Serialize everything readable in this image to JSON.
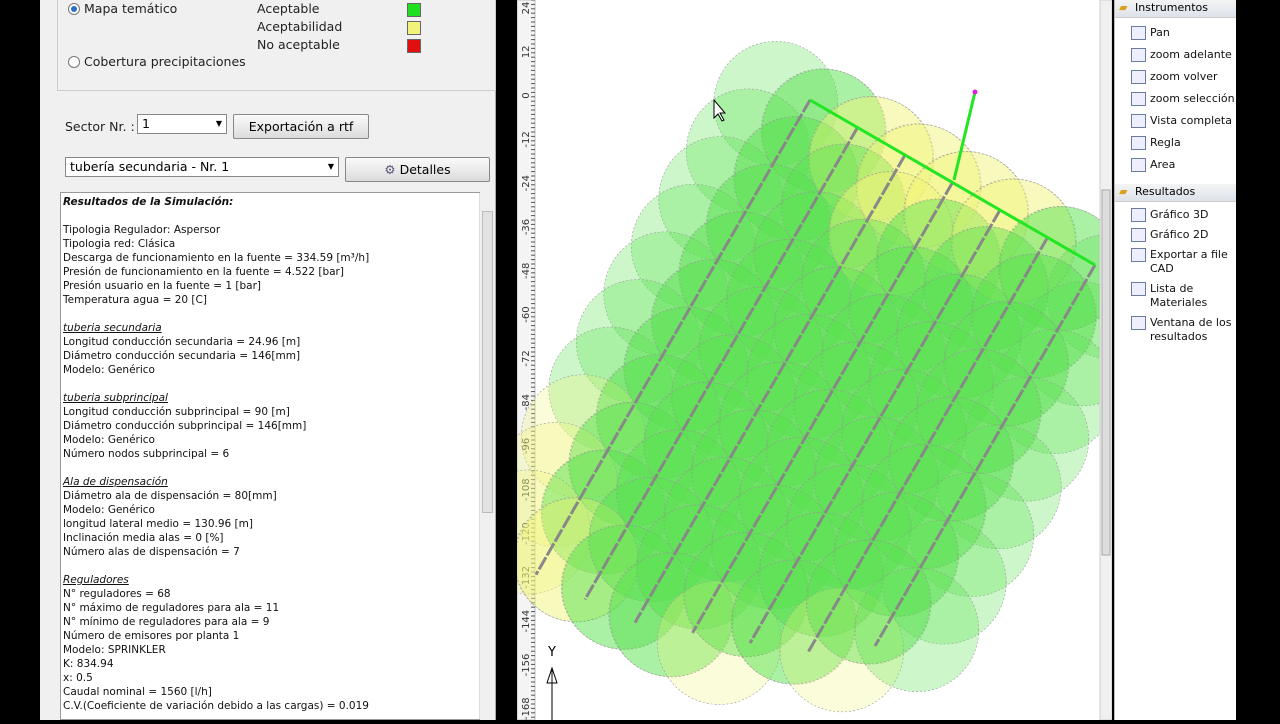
{
  "display": {
    "legend_group": {
      "options": [
        "Mapa temático",
        "Cobertura precipitaciones"
      ],
      "legend": [
        {
          "label": "Aceptable",
          "color": "#1ee01e"
        },
        {
          "label": "Aceptabilidad",
          "color": "#f2f27a"
        },
        {
          "label": "No aceptable",
          "color": "#e01010"
        }
      ]
    },
    "sector_label": "Sector Nr. :",
    "sector_value": "1",
    "export_button": "Exportación a rtf",
    "pipe_select": "tubería secundaria - Nr. 1",
    "details_button": "Detalles"
  },
  "results": {
    "title": "Resultados de la Simulación:",
    "sections": [
      {
        "lines": [
          "Tipologia Regulador: Aspersor",
          "Tipologia red: Clásica",
          "Descarga de funcionamiento en la fuente = 334.59 [m³/h]",
          "Presión de funcionamiento en la fuente = 4.522 [bar]",
          "Presión usuario en la fuente = 1 [bar]",
          "Temperatura agua = 20 [C]"
        ]
      },
      {
        "heading": "tuberia secundaria",
        "lines": [
          "Longitud conducción secundaria = 24.96 [m]",
          "Diámetro conducción secundaria = 146[mm]",
          "Modelo: Genérico"
        ]
      },
      {
        "heading": "tuberia subprincipal",
        "lines": [
          "Longitud conducción subprincipal = 90 [m]",
          "Diámetro conducción subprincipal = 146[mm]",
          "Modelo: Genérico",
          "Número nodos subprincipal = 6"
        ]
      },
      {
        "heading": "Ala de dispensación",
        "lines": [
          "Diámetro ala de dispensación = 80[mm]",
          "Modelo: Genérico",
          "longitud lateral medio = 130.96 [m]",
          "Inclinación media alas = 0 [%]",
          "Número alas de dispensación = 7"
        ]
      },
      {
        "heading": "Reguladores",
        "lines": [
          "N° reguladores = 68",
          "N° máximo de reguladores para ala =  11",
          "N° mínimo de reguladores para ala =  9",
          "Número de emisores por planta 1",
          "Modelo: SPRINKLER",
          "K: 834.94",
          "x: 0.5",
          "Caudal nominal = 1560 [l/h]",
          "C.V.(Coeficiente de variación debido a las cargas) = 0.019"
        ]
      }
    ]
  },
  "canvas": {
    "ruler_labels": [
      "24",
      "12",
      "0",
      "-12",
      "-24",
      "-36",
      "-48",
      "-60",
      "-72",
      "-84",
      "-96",
      "-108",
      "-120",
      "-132",
      "-144",
      "-156",
      "-168"
    ],
    "axis_label": "Y"
  },
  "side_panel": {
    "groups": [
      {
        "title": "Instrumentos",
        "items": [
          "Pan",
          "zoom adelante",
          "zoom volver",
          "zoom selección",
          "Vista completa",
          "Regla",
          "Area"
        ]
      },
      {
        "title": "Resultados",
        "items": [
          "Gráfico 3D",
          "Gráfico 2D",
          "Exportar a file CAD",
          "Lista de Materiales",
          "Ventana de los resultados"
        ]
      }
    ]
  }
}
